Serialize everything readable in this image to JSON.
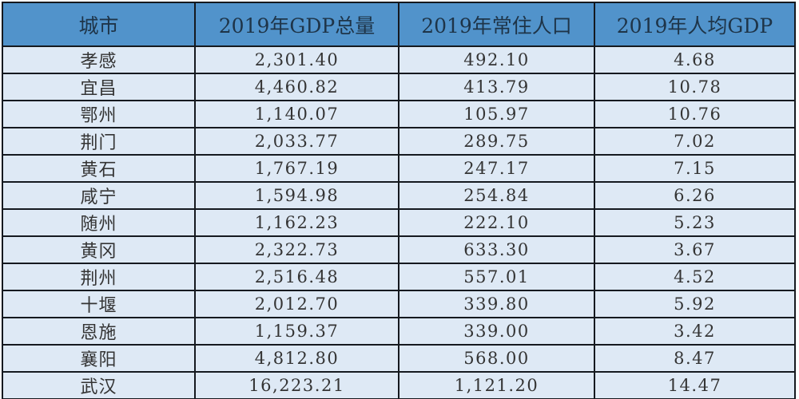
{
  "colors": {
    "page_bg": "#FFFFFF",
    "header_bg": "#5193CB",
    "header_text": "#1E3448",
    "row_bg": "#DEE9F5",
    "cell_text": "#343434",
    "border": "#15191F"
  },
  "chart_data": {
    "type": "table",
    "columns": [
      {
        "key": "city",
        "label": "城市"
      },
      {
        "key": "gdp_total",
        "label": "2019年GDP总量"
      },
      {
        "key": "resident_population",
        "label": "2019年常住人口"
      },
      {
        "key": "gdp_per_capita",
        "label": "2019年人均GDP"
      }
    ],
    "rows": [
      {
        "city": "孝感",
        "gdp_total": "2,301.40",
        "resident_population": "492.10",
        "gdp_per_capita": "4.68"
      },
      {
        "city": "宜昌",
        "gdp_total": "4,460.82",
        "resident_population": "413.79",
        "gdp_per_capita": "10.78"
      },
      {
        "city": "鄂州",
        "gdp_total": "1,140.07",
        "resident_population": "105.97",
        "gdp_per_capita": "10.76"
      },
      {
        "city": "荆门",
        "gdp_total": "2,033.77",
        "resident_population": "289.75",
        "gdp_per_capita": "7.02"
      },
      {
        "city": "黄石",
        "gdp_total": "1,767.19",
        "resident_population": "247.17",
        "gdp_per_capita": "7.15"
      },
      {
        "city": "咸宁",
        "gdp_total": "1,594.98",
        "resident_population": "254.84",
        "gdp_per_capita": "6.26"
      },
      {
        "city": "随州",
        "gdp_total": "1,162.23",
        "resident_population": "222.10",
        "gdp_per_capita": "5.23"
      },
      {
        "city": "黄冈",
        "gdp_total": "2,322.73",
        "resident_population": "633.30",
        "gdp_per_capita": "3.67"
      },
      {
        "city": "荆州",
        "gdp_total": "2,516.48",
        "resident_population": "557.01",
        "gdp_per_capita": "4.52"
      },
      {
        "city": "十堰",
        "gdp_total": "2,012.70",
        "resident_population": "339.80",
        "gdp_per_capita": "5.92"
      },
      {
        "city": "恩施",
        "gdp_total": "1,159.37",
        "resident_population": "339.00",
        "gdp_per_capita": "3.42"
      },
      {
        "city": "襄阳",
        "gdp_total": "4,812.80",
        "resident_population": "568.00",
        "gdp_per_capita": "8.47"
      },
      {
        "city": "武汉",
        "gdp_total": "16,223.21",
        "resident_population": "1,121.20",
        "gdp_per_capita": "14.47"
      }
    ]
  }
}
